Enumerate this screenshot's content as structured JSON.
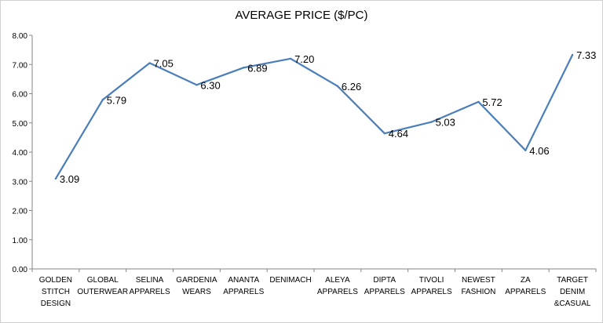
{
  "chart_data": {
    "type": "line",
    "title": "AVERAGE PRICE ($/PC)",
    "xlabel": "",
    "ylabel": "",
    "ylim": [
      0,
      8
    ],
    "yticks": [
      "0.00",
      "1.00",
      "2.00",
      "3.00",
      "4.00",
      "5.00",
      "6.00",
      "7.00",
      "8.00"
    ],
    "grid": false,
    "categories": [
      "GOLDEN STITCH DESIGN",
      "GLOBAL OUTERWEAR",
      "SELINA APPARELS",
      "GARDENIA WEARS",
      "ANANTA APPARELS",
      "DENIMACH",
      "ALEYA APPARELS",
      "DIPTA APPARELS",
      "TIVOLI APPARELS",
      "NEWEST FASHION",
      "ZA APPARELS",
      "TARGET DENIM &CASUAL"
    ],
    "category_lines": [
      [
        "GOLDEN",
        "STITCH",
        "DESIGN"
      ],
      [
        "GLOBAL",
        "OUTERWEAR"
      ],
      [
        "SELINA",
        "APPARELS"
      ],
      [
        "GARDENIA",
        "WEARS"
      ],
      [
        "ANANTA",
        "APPARELS"
      ],
      [
        "DENIMACH"
      ],
      [
        "ALEYA",
        "APPARELS"
      ],
      [
        "DIPTA",
        "APPARELS"
      ],
      [
        "TIVOLI",
        "APPARELS"
      ],
      [
        "NEWEST",
        "FASHION"
      ],
      [
        "ZA",
        "APPARELS"
      ],
      [
        "TARGET",
        "DENIM",
        "&CASUAL"
      ]
    ],
    "values": [
      3.09,
      5.79,
      7.05,
      6.3,
      6.89,
      7.2,
      6.26,
      4.64,
      5.03,
      5.72,
      4.06,
      7.33
    ],
    "data_labels": [
      "3.09",
      "5.79",
      "7.05",
      "6.30",
      "6.89",
      "7.20",
      "6.26",
      "4.64",
      "5.03",
      "5.72",
      "4.06",
      "7.33"
    ],
    "line_color": "#4a7ebb"
  }
}
